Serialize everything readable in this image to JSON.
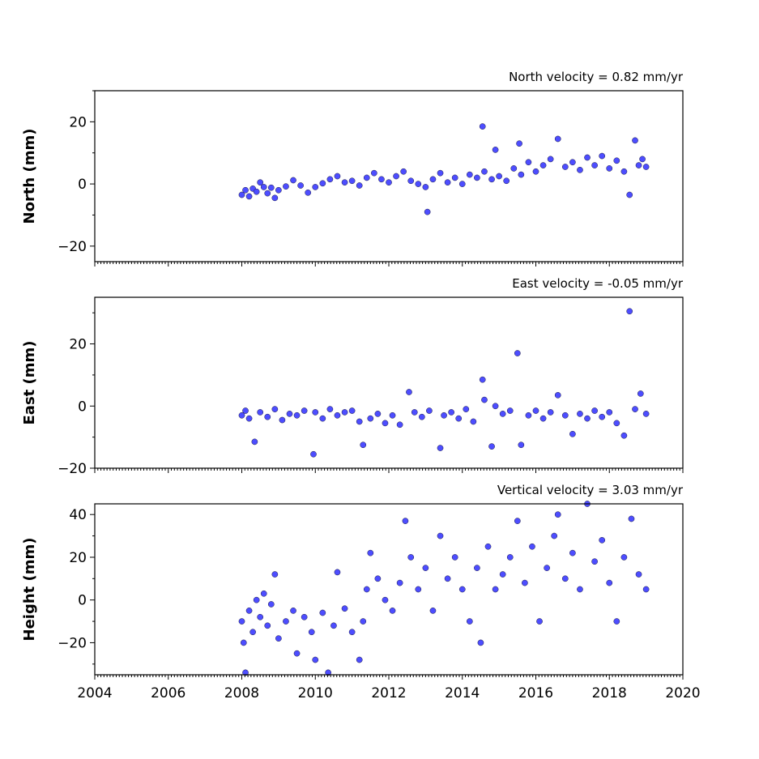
{
  "chart_data": [
    {
      "type": "scatter",
      "title": "North velocity = 0.82 mm/yr",
      "ylabel": "North (mm)",
      "xlim": [
        2004,
        2020
      ],
      "ylim": [
        -25,
        30
      ],
      "yticks": [
        -20,
        0,
        20
      ],
      "yticklabels": [
        "−20",
        "0",
        "20"
      ],
      "xticks": [],
      "xticklabels": [],
      "grid": false,
      "series": [
        {
          "color": "#4d4dff",
          "points": [
            {
              "x": 2008.0,
              "y": -3.5
            },
            {
              "x": 2008.1,
              "y": -2.0
            },
            {
              "x": 2008.2,
              "y": -4.0
            },
            {
              "x": 2008.3,
              "y": -1.5
            },
            {
              "x": 2008.4,
              "y": -2.5
            },
            {
              "x": 2008.5,
              "y": 0.5
            },
            {
              "x": 2008.6,
              "y": -1.0
            },
            {
              "x": 2008.7,
              "y": -3.0
            },
            {
              "x": 2008.8,
              "y": -1.2
            },
            {
              "x": 2008.9,
              "y": -4.5
            },
            {
              "x": 2009.0,
              "y": -2.0
            },
            {
              "x": 2009.2,
              "y": -0.8
            },
            {
              "x": 2009.4,
              "y": 1.2
            },
            {
              "x": 2009.6,
              "y": -0.5
            },
            {
              "x": 2009.8,
              "y": -2.8
            },
            {
              "x": 2010.0,
              "y": -1.0
            },
            {
              "x": 2010.2,
              "y": 0.2
            },
            {
              "x": 2010.4,
              "y": 1.5
            },
            {
              "x": 2010.6,
              "y": 2.5
            },
            {
              "x": 2010.8,
              "y": 0.5
            },
            {
              "x": 2011.0,
              "y": 1.0
            },
            {
              "x": 2011.2,
              "y": -0.5
            },
            {
              "x": 2011.4,
              "y": 2.0
            },
            {
              "x": 2011.6,
              "y": 3.5
            },
            {
              "x": 2011.8,
              "y": 1.5
            },
            {
              "x": 2012.0,
              "y": 0.5
            },
            {
              "x": 2012.2,
              "y": 2.5
            },
            {
              "x": 2012.4,
              "y": 4.0
            },
            {
              "x": 2012.6,
              "y": 1.0
            },
            {
              "x": 2012.8,
              "y": 0.0
            },
            {
              "x": 2013.0,
              "y": -1.0
            },
            {
              "x": 2013.05,
              "y": -9.0
            },
            {
              "x": 2013.2,
              "y": 1.5
            },
            {
              "x": 2013.4,
              "y": 3.5
            },
            {
              "x": 2013.6,
              "y": 0.5
            },
            {
              "x": 2013.8,
              "y": 2.0
            },
            {
              "x": 2014.0,
              "y": 0.0
            },
            {
              "x": 2014.2,
              "y": 3.0
            },
            {
              "x": 2014.4,
              "y": 2.0
            },
            {
              "x": 2014.55,
              "y": 18.5
            },
            {
              "x": 2014.6,
              "y": 4.0
            },
            {
              "x": 2014.8,
              "y": 1.5
            },
            {
              "x": 2014.9,
              "y": 11.0
            },
            {
              "x": 2015.0,
              "y": 2.5
            },
            {
              "x": 2015.2,
              "y": 1.0
            },
            {
              "x": 2015.4,
              "y": 5.0
            },
            {
              "x": 2015.55,
              "y": 13.0
            },
            {
              "x": 2015.6,
              "y": 3.0
            },
            {
              "x": 2015.8,
              "y": 7.0
            },
            {
              "x": 2016.0,
              "y": 4.0
            },
            {
              "x": 2016.2,
              "y": 6.0
            },
            {
              "x": 2016.4,
              "y": 8.0
            },
            {
              "x": 2016.6,
              "y": 14.5
            },
            {
              "x": 2016.8,
              "y": 5.5
            },
            {
              "x": 2017.0,
              "y": 7.0
            },
            {
              "x": 2017.2,
              "y": 4.5
            },
            {
              "x": 2017.4,
              "y": 8.5
            },
            {
              "x": 2017.6,
              "y": 6.0
            },
            {
              "x": 2017.8,
              "y": 9.0
            },
            {
              "x": 2018.0,
              "y": 5.0
            },
            {
              "x": 2018.2,
              "y": 7.5
            },
            {
              "x": 2018.4,
              "y": 4.0
            },
            {
              "x": 2018.55,
              "y": -3.5
            },
            {
              "x": 2018.7,
              "y": 14.0
            },
            {
              "x": 2018.8,
              "y": 6.0
            },
            {
              "x": 2018.9,
              "y": 8.0
            },
            {
              "x": 2019.0,
              "y": 5.5
            }
          ]
        }
      ]
    },
    {
      "type": "scatter",
      "title": "East velocity = -0.05 mm/yr",
      "ylabel": "East (mm)",
      "xlim": [
        2004,
        2020
      ],
      "ylim": [
        -20,
        35
      ],
      "yticks": [
        -20,
        0,
        20
      ],
      "yticklabels": [
        "−20",
        "0",
        "20"
      ],
      "xticks": [],
      "xticklabels": [],
      "grid": false,
      "series": [
        {
          "color": "#4d4dff",
          "points": [
            {
              "x": 2008.0,
              "y": -3.0
            },
            {
              "x": 2008.1,
              "y": -1.5
            },
            {
              "x": 2008.2,
              "y": -4.0
            },
            {
              "x": 2008.35,
              "y": -11.5
            },
            {
              "x": 2008.5,
              "y": -2.0
            },
            {
              "x": 2008.7,
              "y": -3.5
            },
            {
              "x": 2008.9,
              "y": -1.0
            },
            {
              "x": 2009.1,
              "y": -4.5
            },
            {
              "x": 2009.3,
              "y": -2.5
            },
            {
              "x": 2009.5,
              "y": -3.0
            },
            {
              "x": 2009.7,
              "y": -1.5
            },
            {
              "x": 2009.95,
              "y": -15.5
            },
            {
              "x": 2010.0,
              "y": -2.0
            },
            {
              "x": 2010.2,
              "y": -4.0
            },
            {
              "x": 2010.4,
              "y": -1.0
            },
            {
              "x": 2010.6,
              "y": -3.0
            },
            {
              "x": 2010.8,
              "y": -2.0
            },
            {
              "x": 2011.0,
              "y": -1.5
            },
            {
              "x": 2011.2,
              "y": -5.0
            },
            {
              "x": 2011.3,
              "y": -12.5
            },
            {
              "x": 2011.5,
              "y": -4.0
            },
            {
              "x": 2011.7,
              "y": -2.5
            },
            {
              "x": 2011.9,
              "y": -5.5
            },
            {
              "x": 2012.1,
              "y": -3.0
            },
            {
              "x": 2012.3,
              "y": -6.0
            },
            {
              "x": 2012.55,
              "y": 4.5
            },
            {
              "x": 2012.7,
              "y": -2.0
            },
            {
              "x": 2012.9,
              "y": -3.5
            },
            {
              "x": 2013.1,
              "y": -1.5
            },
            {
              "x": 2013.4,
              "y": -13.5
            },
            {
              "x": 2013.5,
              "y": -3.0
            },
            {
              "x": 2013.7,
              "y": -2.0
            },
            {
              "x": 2013.9,
              "y": -4.0
            },
            {
              "x": 2014.1,
              "y": -1.0
            },
            {
              "x": 2014.3,
              "y": -5.0
            },
            {
              "x": 2014.55,
              "y": 8.5
            },
            {
              "x": 2014.6,
              "y": 2.0
            },
            {
              "x": 2014.8,
              "y": -13.0
            },
            {
              "x": 2014.9,
              "y": 0.0
            },
            {
              "x": 2015.1,
              "y": -2.5
            },
            {
              "x": 2015.3,
              "y": -1.5
            },
            {
              "x": 2015.5,
              "y": 17.0
            },
            {
              "x": 2015.6,
              "y": -12.5
            },
            {
              "x": 2015.8,
              "y": -3.0
            },
            {
              "x": 2016.0,
              "y": -1.5
            },
            {
              "x": 2016.2,
              "y": -4.0
            },
            {
              "x": 2016.4,
              "y": -2.0
            },
            {
              "x": 2016.6,
              "y": 3.5
            },
            {
              "x": 2016.8,
              "y": -3.0
            },
            {
              "x": 2017.0,
              "y": -9.0
            },
            {
              "x": 2017.2,
              "y": -2.5
            },
            {
              "x": 2017.4,
              "y": -4.0
            },
            {
              "x": 2017.6,
              "y": -1.5
            },
            {
              "x": 2017.8,
              "y": -3.5
            },
            {
              "x": 2018.0,
              "y": -2.0
            },
            {
              "x": 2018.2,
              "y": -5.5
            },
            {
              "x": 2018.4,
              "y": -9.5
            },
            {
              "x": 2018.55,
              "y": 30.5
            },
            {
              "x": 2018.7,
              "y": -1.0
            },
            {
              "x": 2018.85,
              "y": 4.0
            },
            {
              "x": 2019.0,
              "y": -2.5
            }
          ]
        }
      ]
    },
    {
      "type": "scatter",
      "title": "Vertical velocity = 3.03 mm/yr",
      "ylabel": "Height (mm)",
      "xlim": [
        2004,
        2020
      ],
      "ylim": [
        -35,
        45
      ],
      "yticks": [
        -20,
        0,
        20,
        40
      ],
      "yticklabels": [
        "−20",
        "0",
        "20",
        "40"
      ],
      "xticks": [
        2004,
        2006,
        2008,
        2010,
        2012,
        2014,
        2016,
        2018,
        2020
      ],
      "xticklabels": [
        "2004",
        "2006",
        "2008",
        "2010",
        "2012",
        "2014",
        "2016",
        "2018",
        "2020"
      ],
      "grid": false,
      "series": [
        {
          "color": "#4d4dff",
          "points": [
            {
              "x": 2008.0,
              "y": -10.0
            },
            {
              "x": 2008.05,
              "y": -20.0
            },
            {
              "x": 2008.1,
              "y": -34.0
            },
            {
              "x": 2008.2,
              "y": -5.0
            },
            {
              "x": 2008.3,
              "y": -15.0
            },
            {
              "x": 2008.4,
              "y": 0.0
            },
            {
              "x": 2008.5,
              "y": -8.0
            },
            {
              "x": 2008.6,
              "y": 3.0
            },
            {
              "x": 2008.7,
              "y": -12.0
            },
            {
              "x": 2008.8,
              "y": -2.0
            },
            {
              "x": 2008.9,
              "y": 12.0
            },
            {
              "x": 2009.0,
              "y": -18.0
            },
            {
              "x": 2009.2,
              "y": -10.0
            },
            {
              "x": 2009.4,
              "y": -5.0
            },
            {
              "x": 2009.5,
              "y": -25.0
            },
            {
              "x": 2009.7,
              "y": -8.0
            },
            {
              "x": 2009.9,
              "y": -15.0
            },
            {
              "x": 2010.0,
              "y": -28.0
            },
            {
              "x": 2010.2,
              "y": -6.0
            },
            {
              "x": 2010.35,
              "y": -34.0
            },
            {
              "x": 2010.5,
              "y": -12.0
            },
            {
              "x": 2010.6,
              "y": 13.0
            },
            {
              "x": 2010.8,
              "y": -4.0
            },
            {
              "x": 2011.0,
              "y": -15.0
            },
            {
              "x": 2011.2,
              "y": -28.0
            },
            {
              "x": 2011.3,
              "y": -10.0
            },
            {
              "x": 2011.4,
              "y": 5.0
            },
            {
              "x": 2011.5,
              "y": 22.0
            },
            {
              "x": 2011.7,
              "y": 10.0
            },
            {
              "x": 2011.9,
              "y": 0.0
            },
            {
              "x": 2012.1,
              "y": -5.0
            },
            {
              "x": 2012.3,
              "y": 8.0
            },
            {
              "x": 2012.45,
              "y": 37.0
            },
            {
              "x": 2012.6,
              "y": 20.0
            },
            {
              "x": 2012.8,
              "y": 5.0
            },
            {
              "x": 2013.0,
              "y": 15.0
            },
            {
              "x": 2013.2,
              "y": -5.0
            },
            {
              "x": 2013.4,
              "y": 30.0
            },
            {
              "x": 2013.6,
              "y": 10.0
            },
            {
              "x": 2013.8,
              "y": 20.0
            },
            {
              "x": 2014.0,
              "y": 5.0
            },
            {
              "x": 2014.2,
              "y": -10.0
            },
            {
              "x": 2014.4,
              "y": 15.0
            },
            {
              "x": 2014.5,
              "y": -20.0
            },
            {
              "x": 2014.7,
              "y": 25.0
            },
            {
              "x": 2014.9,
              "y": 5.0
            },
            {
              "x": 2015.1,
              "y": 12.0
            },
            {
              "x": 2015.3,
              "y": 20.0
            },
            {
              "x": 2015.5,
              "y": 37.0
            },
            {
              "x": 2015.7,
              "y": 8.0
            },
            {
              "x": 2015.9,
              "y": 25.0
            },
            {
              "x": 2016.1,
              "y": -10.0
            },
            {
              "x": 2016.3,
              "y": 15.0
            },
            {
              "x": 2016.5,
              "y": 30.0
            },
            {
              "x": 2016.6,
              "y": 40.0
            },
            {
              "x": 2016.8,
              "y": 10.0
            },
            {
              "x": 2017.0,
              "y": 22.0
            },
            {
              "x": 2017.2,
              "y": 5.0
            },
            {
              "x": 2017.4,
              "y": 45.0
            },
            {
              "x": 2017.6,
              "y": 18.0
            },
            {
              "x": 2017.8,
              "y": 28.0
            },
            {
              "x": 2018.0,
              "y": 8.0
            },
            {
              "x": 2018.2,
              "y": -10.0
            },
            {
              "x": 2018.4,
              "y": 20.0
            },
            {
              "x": 2018.6,
              "y": 38.0
            },
            {
              "x": 2018.8,
              "y": 12.0
            },
            {
              "x": 2019.0,
              "y": 5.0
            }
          ]
        }
      ]
    }
  ]
}
